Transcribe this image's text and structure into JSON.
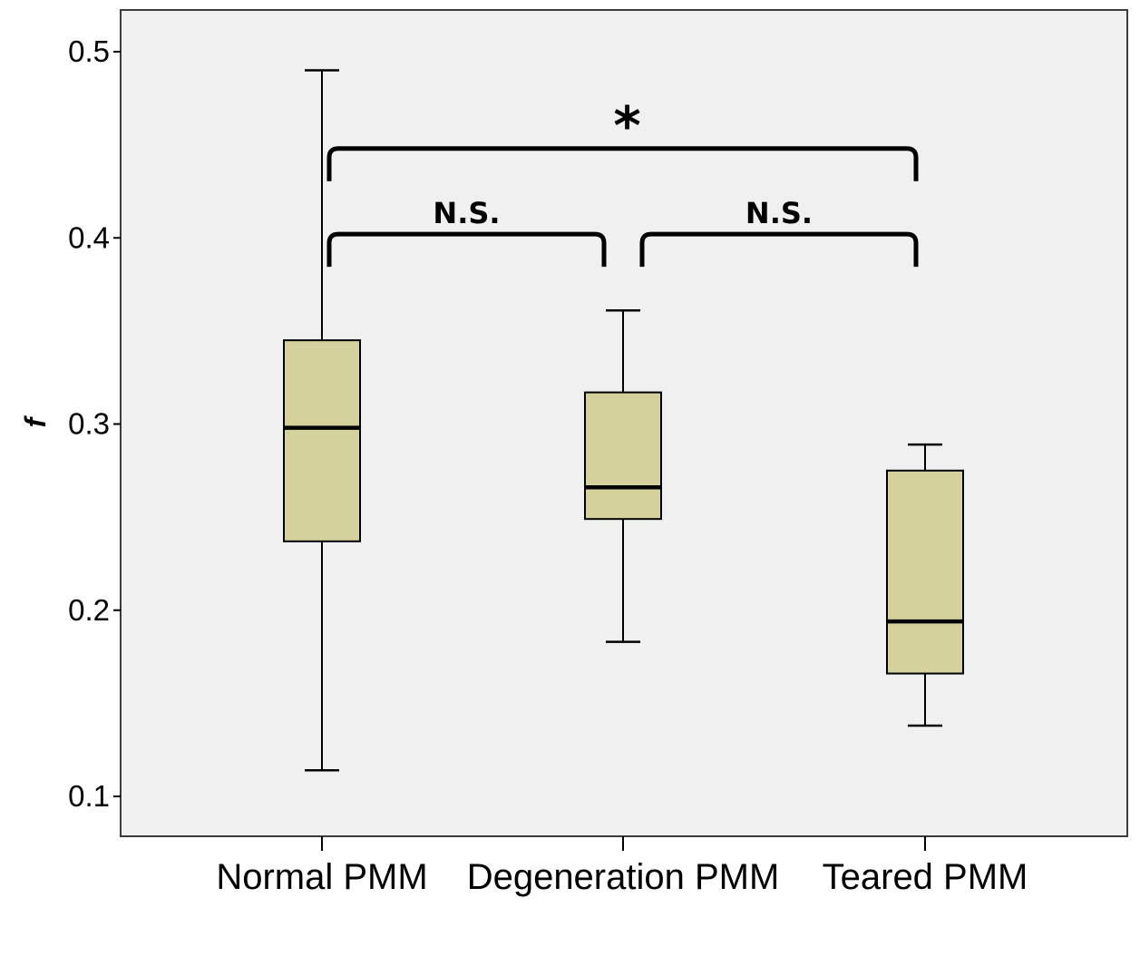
{
  "chart_data": {
    "type": "box",
    "title": "",
    "xlabel": "",
    "ylabel": "f",
    "ylim": [
      0.08,
      0.52
    ],
    "yticks": [
      0.1,
      0.2,
      0.3,
      0.4,
      0.5
    ],
    "ytick_labels": [
      "0.1",
      "0.2",
      "0.3",
      "0.4",
      "0.5"
    ],
    "grid": false,
    "colors": {
      "background": "#f0f0f0",
      "box_fill": "#d5d19c",
      "stroke": "#000000"
    },
    "categories": [
      "Normal PMM",
      "Degeneration PMM",
      "Teared PMM"
    ],
    "boxes": [
      {
        "name": "Normal PMM",
        "min": 0.114,
        "q1": 0.237,
        "median": 0.298,
        "q3": 0.345,
        "max": 0.49
      },
      {
        "name": "Degeneration PMM",
        "min": 0.183,
        "q1": 0.249,
        "median": 0.266,
        "q3": 0.317,
        "max": 0.361
      },
      {
        "name": "Teared PMM",
        "min": 0.138,
        "q1": 0.166,
        "median": 0.194,
        "q3": 0.275,
        "max": 0.289
      }
    ],
    "annotations": [
      {
        "from": 0,
        "to": 1,
        "label": "N.S.",
        "level": 0.402
      },
      {
        "from": 1,
        "to": 2,
        "label": "N.S.",
        "level": 0.402
      },
      {
        "from": 0,
        "to": 2,
        "label": "*",
        "level": 0.448
      }
    ]
  }
}
